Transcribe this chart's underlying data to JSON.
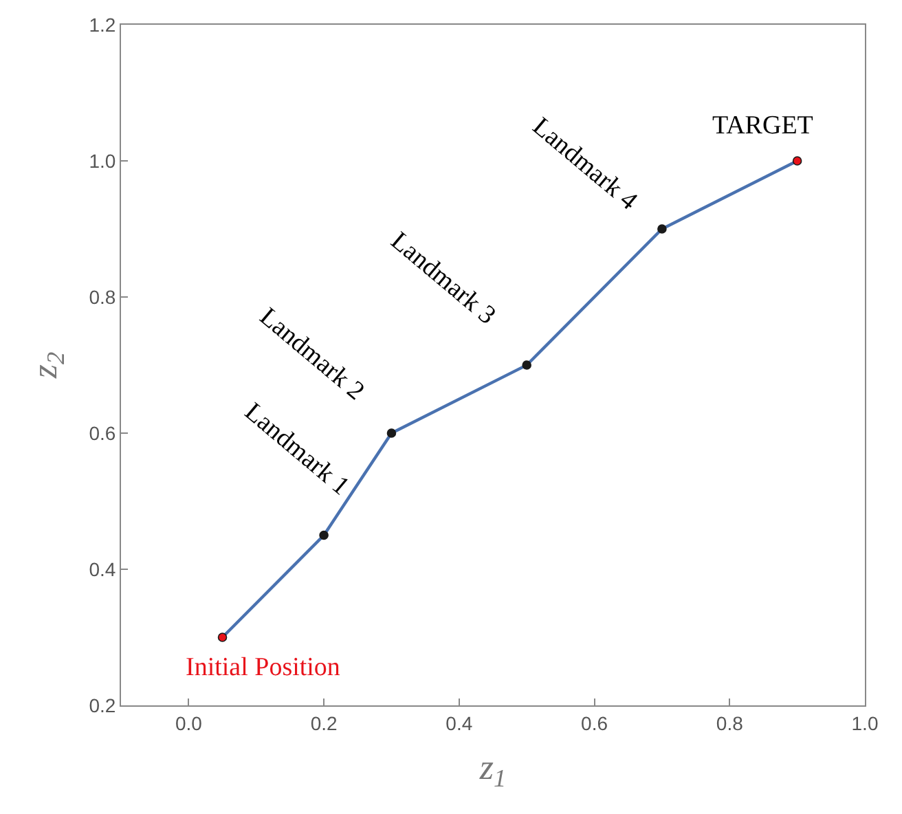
{
  "chart_data": {
    "type": "line",
    "xlabel": "z$_{1}$",
    "ylabel": "z$_{2}$",
    "x": [
      0.05,
      0.2,
      0.3,
      0.5,
      0.7,
      0.9
    ],
    "series": [
      {
        "color": "#4a72b0",
        "values": [
          0.3,
          0.45,
          0.6,
          0.7,
          0.9,
          1.0
        ],
        "colors": [
          "#e8131b",
          "#1a1a1a",
          "#1a1a1a",
          "#1a1a1a",
          "#1a1a1a",
          "#e8131b"
        ]
      }
    ],
    "xlim": [
      -0.1,
      1.0
    ],
    "ylim": [
      0.2,
      1.2
    ],
    "xticks": [
      {
        "value": 0,
        "label": "0.0"
      },
      0.2,
      0.4,
      0.6,
      0.8,
      {
        "value": 1,
        "label": "1.0"
      }
    ],
    "yticks": [
      0.2,
      0.4,
      0.6,
      0.8,
      {
        "value": 1,
        "label": "1.0"
      },
      1.2
    ],
    "annotations": [
      {
        "text": "Initial Position",
        "x": 0.05,
        "y": 0.3
      },
      {
        "text": "Landmark 1",
        "x": 0.2,
        "y": 0.45
      },
      {
        "text": "Landmark 2",
        "x": 0.3,
        "y": 0.6
      },
      {
        "text": "Landmark 3",
        "x": 0.5,
        "y": 0.7
      },
      {
        "text": "Landmark 4",
        "x": 0.7,
        "y": 0.9
      },
      {
        "text": "TARGET",
        "x": 0.9,
        "y": 1.0
      }
    ],
    "marker": "circle",
    "line_style": "solid"
  }
}
